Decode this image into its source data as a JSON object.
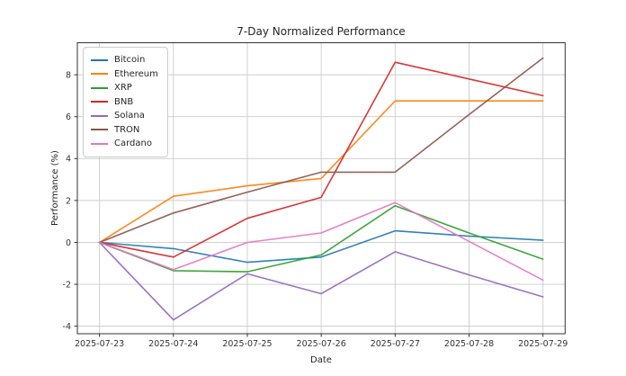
{
  "figure": {
    "background": "#ffffff",
    "text_color": "#262626",
    "grid_color": "#cccccc",
    "spine_color": "#333333"
  },
  "chart_data": {
    "type": "line",
    "title": "7-Day Normalized Performance",
    "xlabel": "Date",
    "ylabel": "Performance (%)",
    "x": [
      "2025-07-23",
      "2025-07-24",
      "2025-07-25",
      "2025-07-26",
      "2025-07-27",
      "2025-07-28",
      "2025-07-29"
    ],
    "yticks": [
      -4,
      -2,
      0,
      2,
      4,
      6,
      8
    ],
    "ylim": [
      -4.36,
      9.53
    ],
    "grid": true,
    "legend_position": "upper-left",
    "series": [
      {
        "name": "Bitcoin",
        "color": "#1f77b4",
        "values": [
          0,
          -0.3,
          -0.95,
          -0.7,
          0.55,
          0.3,
          0.1
        ]
      },
      {
        "name": "Ethereum",
        "color": "#ff7f0e",
        "values": [
          0,
          2.2,
          2.7,
          3.05,
          6.75,
          6.75,
          6.75
        ]
      },
      {
        "name": "XRP",
        "color": "#2ca02c",
        "values": [
          0,
          -1.35,
          -1.4,
          -0.6,
          1.75,
          0.45,
          -0.8
        ]
      },
      {
        "name": "BNB",
        "color": "#d62728",
        "values": [
          0,
          -0.7,
          1.15,
          2.15,
          8.6,
          7.8,
          7.0
        ]
      },
      {
        "name": "Solana",
        "color": "#9467bd",
        "values": [
          0,
          -3.7,
          -1.5,
          -2.45,
          -0.45,
          -1.55,
          -2.6
        ]
      },
      {
        "name": "TRON",
        "color": "#8c564b",
        "values": [
          0,
          1.4,
          2.4,
          3.35,
          3.35,
          6.1,
          8.8
        ]
      },
      {
        "name": "Cardano",
        "color": "#e377c2",
        "values": [
          0,
          -1.3,
          0.0,
          0.45,
          1.9,
          0.05,
          -1.8
        ]
      }
    ]
  }
}
